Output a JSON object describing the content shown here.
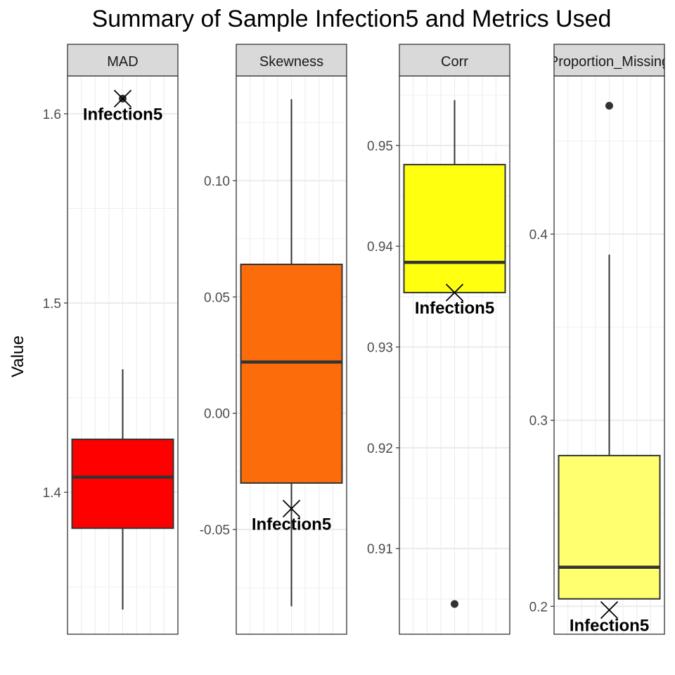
{
  "chart_data": {
    "type": "box",
    "title": "Summary of Sample Infection5 and Metrics Used",
    "ylabel": "Value",
    "xlabel": "",
    "highlight_label": "Infection5",
    "panels": [
      {
        "name": "MAD",
        "fill": "#ff0000",
        "ylim": [
          1.325,
          1.62
        ],
        "ticks": [
          1.4,
          1.5,
          1.6
        ],
        "tick_labels": [
          "1.4",
          "1.5",
          "1.6"
        ],
        "box": {
          "q1": 1.381,
          "median": 1.408,
          "q3": 1.428,
          "whisker_low": 1.338,
          "whisker_high": 1.465
        },
        "outliers": [
          1.608
        ],
        "highlight_value": 1.608
      },
      {
        "name": "Skewness",
        "fill": "#fc6c0a",
        "ylim": [
          -0.095,
          0.145
        ],
        "ticks": [
          -0.05,
          0.0,
          0.05,
          0.1
        ],
        "tick_labels": [
          "-0.05",
          "0.00",
          "0.05",
          "0.10"
        ],
        "box": {
          "q1": -0.03,
          "median": 0.022,
          "q3": 0.064,
          "whisker_low": -0.083,
          "whisker_high": 0.135
        },
        "outliers": [],
        "highlight_value": -0.041
      },
      {
        "name": "Corr",
        "fill": "#ffff10",
        "ylim": [
          0.9015,
          0.9569
        ],
        "ticks": [
          0.91,
          0.92,
          0.93,
          0.94,
          0.95
        ],
        "tick_labels": [
          "0.91",
          "0.92",
          "0.93",
          "0.94",
          "0.95"
        ],
        "box": {
          "q1": 0.9354,
          "median": 0.9384,
          "q3": 0.9481,
          "whisker_low": 0.9354,
          "whisker_high": 0.9545
        },
        "outliers": [
          0.9045
        ],
        "highlight_value": 0.9354
      },
      {
        "name": "Proportion_Missing",
        "fill": "#ffff70",
        "ylim": [
          0.185,
          0.485
        ],
        "ticks": [
          0.2,
          0.3,
          0.4
        ],
        "tick_labels": [
          "0.2",
          "0.3",
          "0.4"
        ],
        "box": {
          "q1": 0.204,
          "median": 0.221,
          "q3": 0.281,
          "whisker_low": 0.204,
          "whisker_high": 0.389
        },
        "outliers": [
          0.469
        ],
        "highlight_value": 0.198
      }
    ]
  }
}
